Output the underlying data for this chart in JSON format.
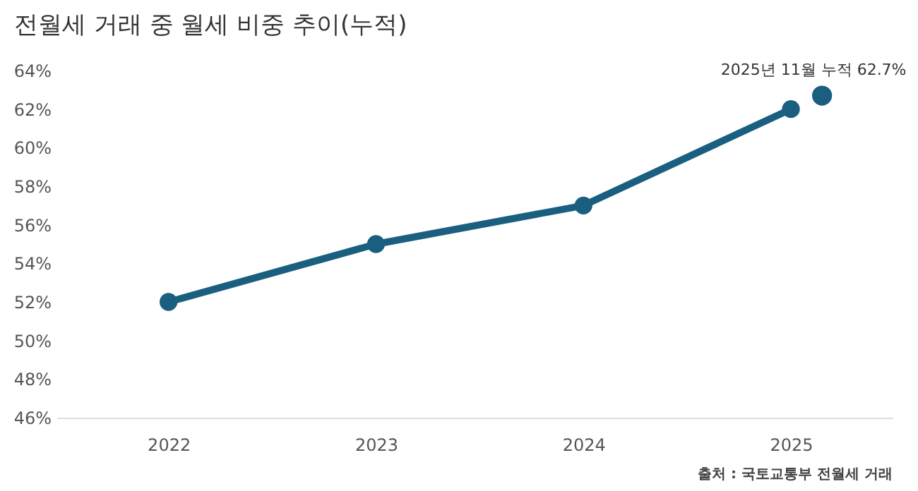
{
  "chart_data": {
    "type": "line",
    "title": "전월세 거래 중 월세 비중 추이(누적)",
    "xlim": [
      2021.46,
      2025.49
    ],
    "xticks": [
      2022,
      2023,
      2024,
      2025
    ],
    "ylim": [
      46,
      64
    ],
    "yticks": [
      {
        "value": 46,
        "label": "46%"
      },
      {
        "value": 48,
        "label": "48%"
      },
      {
        "value": 50,
        "label": "50%"
      },
      {
        "value": 52,
        "label": "52%"
      },
      {
        "value": 54,
        "label": "54%"
      },
      {
        "value": 56,
        "label": "56%"
      },
      {
        "value": 58,
        "label": "58%"
      },
      {
        "value": 60,
        "label": "60%"
      },
      {
        "value": 62,
        "label": "62%"
      },
      {
        "value": 64,
        "label": "64%"
      }
    ],
    "marker": "circle",
    "series": [
      {
        "color": "#1a5f80",
        "x": [
          2022,
          2023,
          2024,
          2025
        ],
        "values": [
          52,
          55,
          57,
          62
        ]
      },
      {
        "type": "scatter",
        "color": "#1a5f80",
        "x": [
          2025.15
        ],
        "values": [
          62.7
        ]
      }
    ],
    "annotations": [
      {
        "text": "2025년 11월 누적 62.7%",
        "x": 2025.15,
        "y": 62.7
      },
      "출처 : 국토교통부 전월세 거래"
    ]
  }
}
